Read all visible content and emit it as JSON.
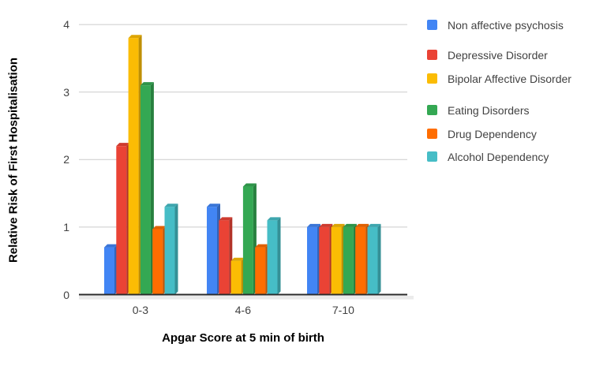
{
  "chart_data": {
    "type": "bar",
    "style": "3d-grouped-columns",
    "title": "",
    "xlabel": "Apgar Score at 5 min of birth",
    "ylabel": "Relative Risk of First Hospitalisation",
    "categories": [
      "0-3",
      "4-6",
      "7-10"
    ],
    "series": [
      {
        "name": "Non affective psychosis",
        "color": "#4285F4",
        "values": [
          0.7,
          1.3,
          1.0
        ]
      },
      {
        "name": "Depressive Disorder",
        "color": "#EA4335",
        "values": [
          2.2,
          1.1,
          1.0
        ]
      },
      {
        "name": "Bipolar Affective Disorder",
        "color": "#FBBC04",
        "values": [
          3.8,
          0.5,
          1.0
        ]
      },
      {
        "name": "Eating Disorders",
        "color": "#34A853",
        "values": [
          3.1,
          1.6,
          1.0
        ]
      },
      {
        "name": "Drug Dependency",
        "color": "#FF6D01",
        "values": [
          0.97,
          0.7,
          1.0
        ]
      },
      {
        "name": "Alcohol Dependency",
        "color": "#46BDC6",
        "values": [
          1.3,
          1.1,
          1.0
        ]
      }
    ],
    "y_ticks": [
      "0",
      "1",
      "2",
      "3",
      "4"
    ],
    "ylim": [
      0,
      4
    ],
    "grid": true,
    "legend_position": "right",
    "colors": {
      "gridline": "#cccccc",
      "baseline": "#2b2b2b",
      "floor_shadow": "#ebebeb",
      "tick_label": "#424242",
      "axis_title": "#000000",
      "legend_text": "#424242",
      "background": "#ffffff"
    }
  }
}
